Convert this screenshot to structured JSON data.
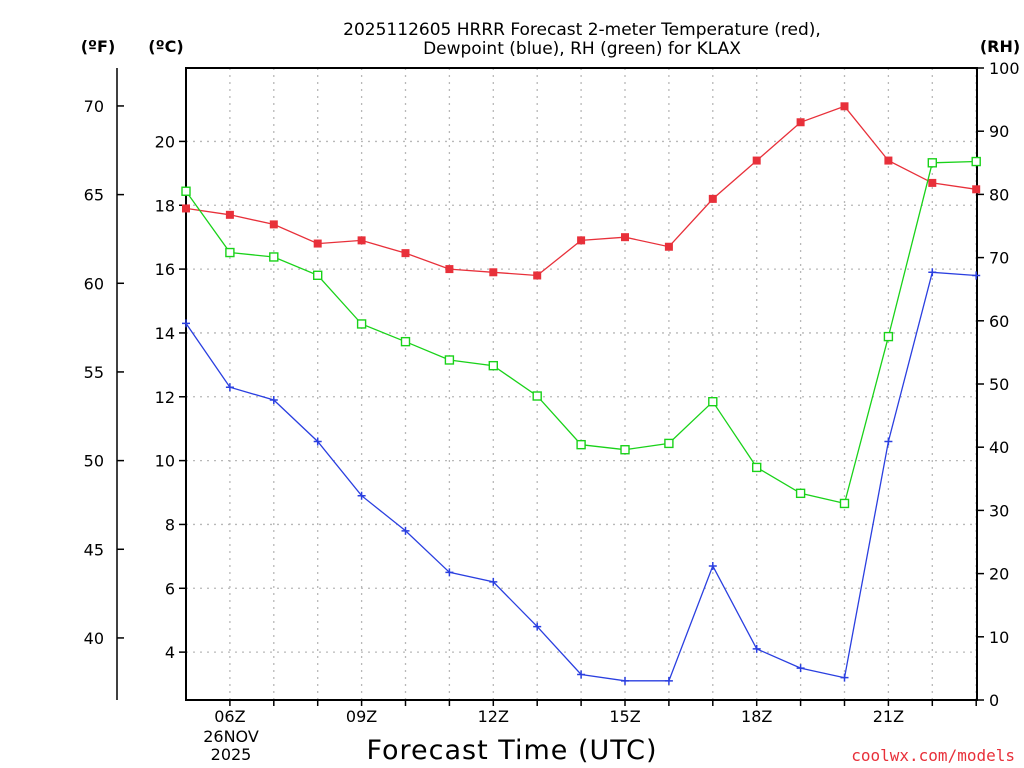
{
  "title_line1": "2025112605 HRRR Forecast 2-meter Temperature (red),",
  "title_line2": "Dewpoint (blue), RH (green) for KLAX",
  "unit_f": "(ºF)",
  "unit_c": "(ºC)",
  "unit_rh": "(RH)",
  "xlabel": "Forecast Time (UTC)",
  "date_line1": "26NOV",
  "date_line2": "2025",
  "credit": "coolwx.com/models",
  "colors": {
    "temperature": "#e8303a",
    "dewpoint": "#2a3fe0",
    "rh": "#19d219"
  },
  "chart_data": {
    "type": "line",
    "x": [
      "05Z",
      "06Z",
      "07Z",
      "08Z",
      "09Z",
      "10Z",
      "11Z",
      "12Z",
      "13Z",
      "14Z",
      "15Z",
      "16Z",
      "17Z",
      "18Z",
      "19Z",
      "20Z",
      "21Z",
      "22Z",
      "23Z"
    ],
    "x_tick_labels": [
      "06Z",
      "09Z",
      "12Z",
      "15Z",
      "18Z",
      "21Z"
    ],
    "ylim_c": [
      2.5,
      22.3
    ],
    "ylim_rh": [
      0,
      100
    ],
    "yticks_c": [
      4,
      6,
      8,
      10,
      12,
      14,
      16,
      18,
      20
    ],
    "yticks_f": [
      40,
      45,
      50,
      55,
      60,
      65,
      70
    ],
    "yticks_rh": [
      0,
      10,
      20,
      30,
      40,
      50,
      60,
      70,
      80,
      90,
      100
    ],
    "series": [
      {
        "name": "Temperature (°C)",
        "axis": "c",
        "marker": "filled-square",
        "values": [
          17.9,
          17.7,
          17.4,
          16.8,
          16.9,
          16.5,
          16.0,
          15.9,
          15.8,
          16.9,
          17.0,
          16.7,
          18.2,
          19.4,
          20.6,
          21.1,
          19.4,
          18.7,
          18.5
        ]
      },
      {
        "name": "Dewpoint (°C)",
        "axis": "c",
        "marker": "plus",
        "values": [
          14.3,
          12.3,
          11.9,
          10.6,
          8.9,
          7.8,
          6.5,
          6.2,
          4.8,
          3.3,
          3.1,
          3.1,
          6.7,
          4.1,
          3.5,
          3.2,
          10.6,
          15.9,
          15.8
        ]
      },
      {
        "name": "RH (%)",
        "axis": "rh",
        "marker": "open-square",
        "values": [
          80.5,
          70.8,
          70.1,
          67.2,
          59.5,
          56.7,
          53.8,
          52.9,
          48.1,
          40.4,
          39.6,
          40.6,
          47.2,
          36.8,
          32.7,
          31.1,
          57.5,
          85.0,
          85.2
        ]
      }
    ]
  }
}
